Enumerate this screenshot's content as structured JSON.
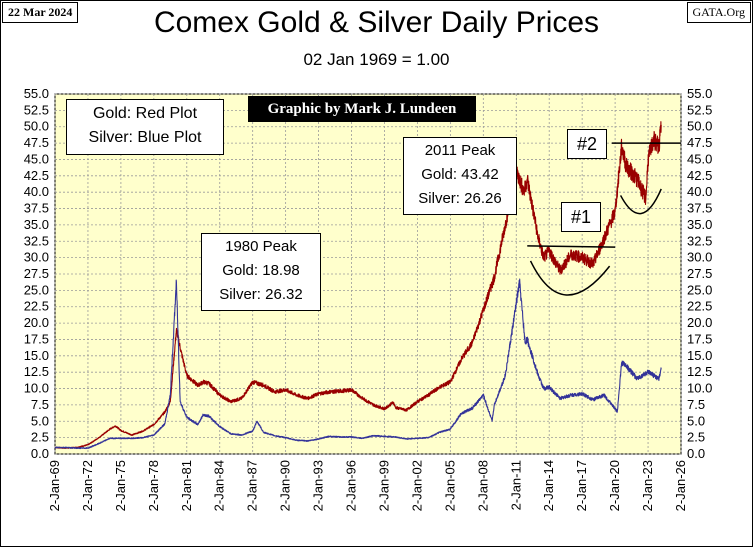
{
  "header": {
    "date": "22 Mar 2024",
    "source": "GATA.Org",
    "title": "Comex Gold & Silver Daily Prices",
    "subtitle": "02 Jan 1969 = 1.00"
  },
  "legend": {
    "line1": "Gold: Red Plot",
    "line2": "Silver: Blue Plot"
  },
  "credit": "Graphic by Mark J. Lundeen",
  "annotations": {
    "peak1980": {
      "title": "1980 Peak",
      "gold": "Gold:  18.98",
      "silver": "Silver: 26.32"
    },
    "peak2011": {
      "title": "2011 Peak",
      "gold": "Gold:  43.42",
      "silver": "Silver: 26.26"
    },
    "marker1": "#1",
    "marker2": "#2"
  },
  "colors": {
    "gold": "#990000",
    "silver": "#333399",
    "plot_bg": "#FFFFCC",
    "grid": "#9a9a9a"
  },
  "chart_data": {
    "type": "line",
    "title": "Comex Gold & Silver Daily Prices",
    "subtitle": "02 Jan 1969 = 1.00",
    "ylim": [
      0,
      55
    ],
    "yticks": [
      0.0,
      2.5,
      5.0,
      7.5,
      10.0,
      12.5,
      15.0,
      17.5,
      20.0,
      22.5,
      25.0,
      27.5,
      30.0,
      32.5,
      35.0,
      37.5,
      40.0,
      42.5,
      45.0,
      47.5,
      50.0,
      52.5,
      55.0
    ],
    "xlim": [
      1969,
      2026
    ],
    "xticks": [
      "2-Jan-69",
      "2-Jan-72",
      "2-Jan-75",
      "2-Jan-78",
      "2-Jan-81",
      "2-Jan-84",
      "2-Jan-87",
      "2-Jan-90",
      "2-Jan-93",
      "2-Jan-96",
      "2-Jan-99",
      "2-Jan-02",
      "2-Jan-05",
      "2-Jan-08",
      "2-Jan-11",
      "2-Jan-14",
      "2-Jan-17",
      "2-Jan-20",
      "2-Jan-23",
      "2-Jan-26"
    ],
    "grid": true,
    "legend": "top-left",
    "series": [
      {
        "name": "Gold",
        "x": [
          1969,
          1970,
          1971,
          1972,
          1973,
          1974,
          1974.5,
          1975,
          1976,
          1977,
          1978,
          1979,
          1979.5,
          1980.05,
          1980.5,
          1981,
          1982,
          1982.5,
          1983,
          1984,
          1985,
          1986,
          1987,
          1988,
          1989,
          1990,
          1991,
          1992,
          1993,
          1994,
          1995,
          1996,
          1997,
          1998,
          1999,
          1999.8,
          2000,
          2001,
          2002,
          2003,
          2004,
          2005,
          2006,
          2007,
          2008,
          2009,
          2010,
          2011,
          2011.7,
          2012,
          2013,
          2013.5,
          2014,
          2015,
          2016,
          2017,
          2018,
          2019,
          2019.5,
          2020,
          2020.6,
          2021,
          2022,
          2022.8,
          2023,
          2023.5,
          2024,
          2024.2
        ],
        "values": [
          1.0,
          0.9,
          1.0,
          1.4,
          2.5,
          3.8,
          4.3,
          3.6,
          2.9,
          3.5,
          4.5,
          6.4,
          8.0,
          18.98,
          15.5,
          12.0,
          10.5,
          11.0,
          10.8,
          9.0,
          8.0,
          8.5,
          11.0,
          10.5,
          9.5,
          9.8,
          9.0,
          8.5,
          9.2,
          9.5,
          9.6,
          9.8,
          8.5,
          7.5,
          6.9,
          7.9,
          7.1,
          6.7,
          8.0,
          9.0,
          10.2,
          11.0,
          14.5,
          17.0,
          22.0,
          27.0,
          35.0,
          43.42,
          40.0,
          42.0,
          33.0,
          30.0,
          31.0,
          28.0,
          30.5,
          30.0,
          29.0,
          33.0,
          35.0,
          37.0,
          47.0,
          44.0,
          42.0,
          39.0,
          45.0,
          48.0,
          47.0,
          50.3
        ]
      },
      {
        "name": "Silver",
        "x": [
          1969,
          1970,
          1971,
          1972,
          1973,
          1974,
          1975,
          1976,
          1977,
          1978,
          1979,
          1979.5,
          1980.05,
          1980.4,
          1981,
          1982,
          1982.5,
          1983,
          1984,
          1985,
          1986,
          1987,
          1987.4,
          1988,
          1989,
          1990,
          1991,
          1992,
          1993,
          1994,
          1995,
          1996,
          1997,
          1998,
          1999,
          2000,
          2001,
          2002,
          2003,
          2004,
          2005,
          2006,
          2007,
          2008,
          2008.8,
          2009,
          2010,
          2011.3,
          2011.8,
          2012,
          2013,
          2013.5,
          2014,
          2015,
          2016,
          2017,
          2018,
          2019,
          2020.2,
          2020.6,
          2021,
          2022,
          2023,
          2024,
          2024.2
        ],
        "values": [
          1.0,
          1.0,
          0.9,
          0.9,
          1.6,
          2.4,
          2.4,
          2.4,
          2.5,
          2.9,
          4.6,
          9.0,
          26.32,
          8.0,
          5.6,
          4.5,
          6.0,
          5.8,
          4.2,
          3.1,
          2.9,
          3.5,
          5.0,
          3.3,
          2.8,
          2.5,
          2.1,
          2.0,
          2.3,
          2.7,
          2.6,
          2.6,
          2.4,
          2.8,
          2.7,
          2.6,
          2.3,
          2.4,
          2.5,
          3.3,
          3.8,
          6.2,
          7.0,
          9.0,
          5.0,
          7.5,
          12.0,
          26.26,
          17.0,
          17.5,
          12.0,
          10.0,
          10.2,
          8.5,
          9.0,
          9.2,
          8.3,
          9.0,
          6.5,
          14.0,
          13.5,
          11.5,
          12.5,
          11.5,
          13.0
        ]
      }
    ]
  }
}
